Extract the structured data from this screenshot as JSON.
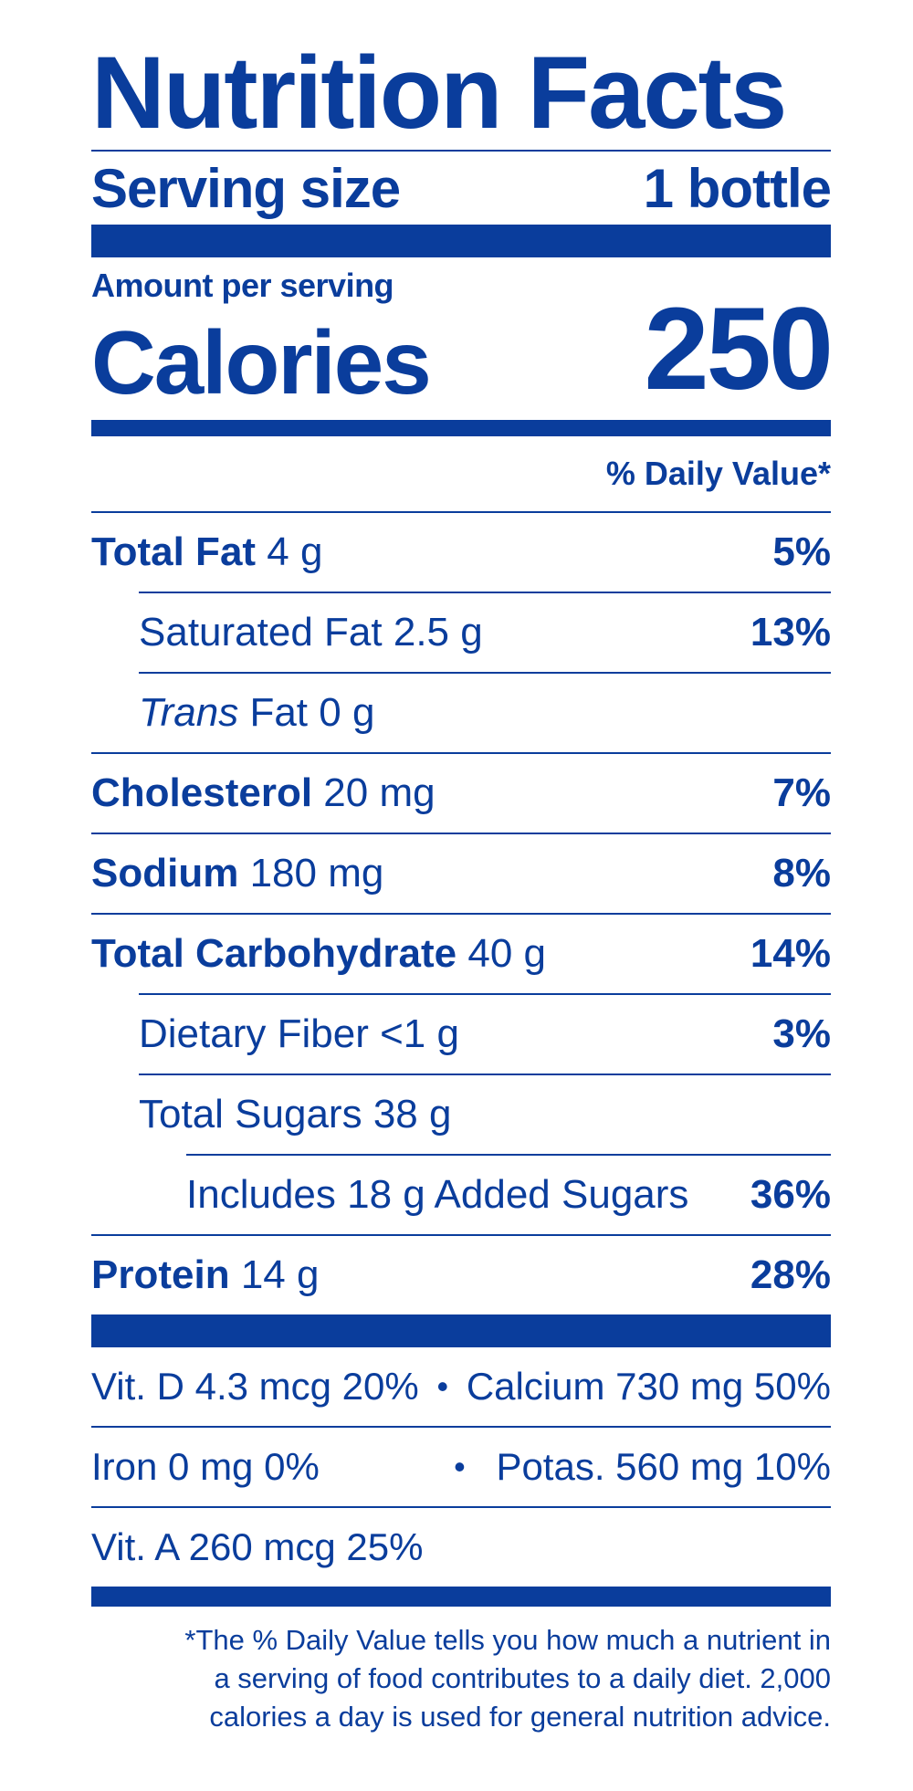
{
  "title": "Nutrition Facts",
  "serving": {
    "label": "Serving size",
    "value": "1 bottle"
  },
  "amount_per_serving": "Amount per serving",
  "calories": {
    "label": "Calories",
    "value": "250"
  },
  "daily_value_header": "% Daily Value*",
  "nutrients": [
    {
      "name": "Total Fat",
      "amount": "4 g",
      "pct": "5%"
    },
    {
      "name": "Saturated Fat",
      "amount": "2.5 g",
      "pct": "13%"
    },
    {
      "name_italic": "Trans",
      "name": "Fat",
      "amount": "0 g",
      "pct": ""
    },
    {
      "name": "Cholesterol",
      "amount": "20 mg",
      "pct": "7%"
    },
    {
      "name": "Sodium",
      "amount": "180 mg",
      "pct": "8%"
    },
    {
      "name": "Total Carbohydrate",
      "amount": "40 g",
      "pct": "14%"
    },
    {
      "name": "Dietary Fiber",
      "amount": "<1 g",
      "pct": "3%"
    },
    {
      "name": "Total Sugars",
      "amount": "38 g",
      "pct": ""
    },
    {
      "name": "Includes 18 g Added Sugars",
      "amount": "",
      "pct": "36%"
    },
    {
      "name": "Protein",
      "amount": "14 g",
      "pct": "28%"
    }
  ],
  "vitamins": [
    {
      "left": "Vit. D 4.3 mcg 20%",
      "right": "Calcium 730 mg 50%"
    },
    {
      "left": "Iron 0 mg 0%",
      "right": "Potas. 560 mg 10%"
    },
    {
      "left": "Vit. A 260 mcg 25%",
      "right": ""
    }
  ],
  "bullet": "•",
  "footnote": [
    "*The % Daily Value tells you how much a nutrient in",
    "a serving of food contributes to a daily diet. 2,000",
    "calories a day is used for general nutrition advice."
  ],
  "colors": {
    "ink": "#0a3d9c",
    "background": "#ffffff"
  }
}
